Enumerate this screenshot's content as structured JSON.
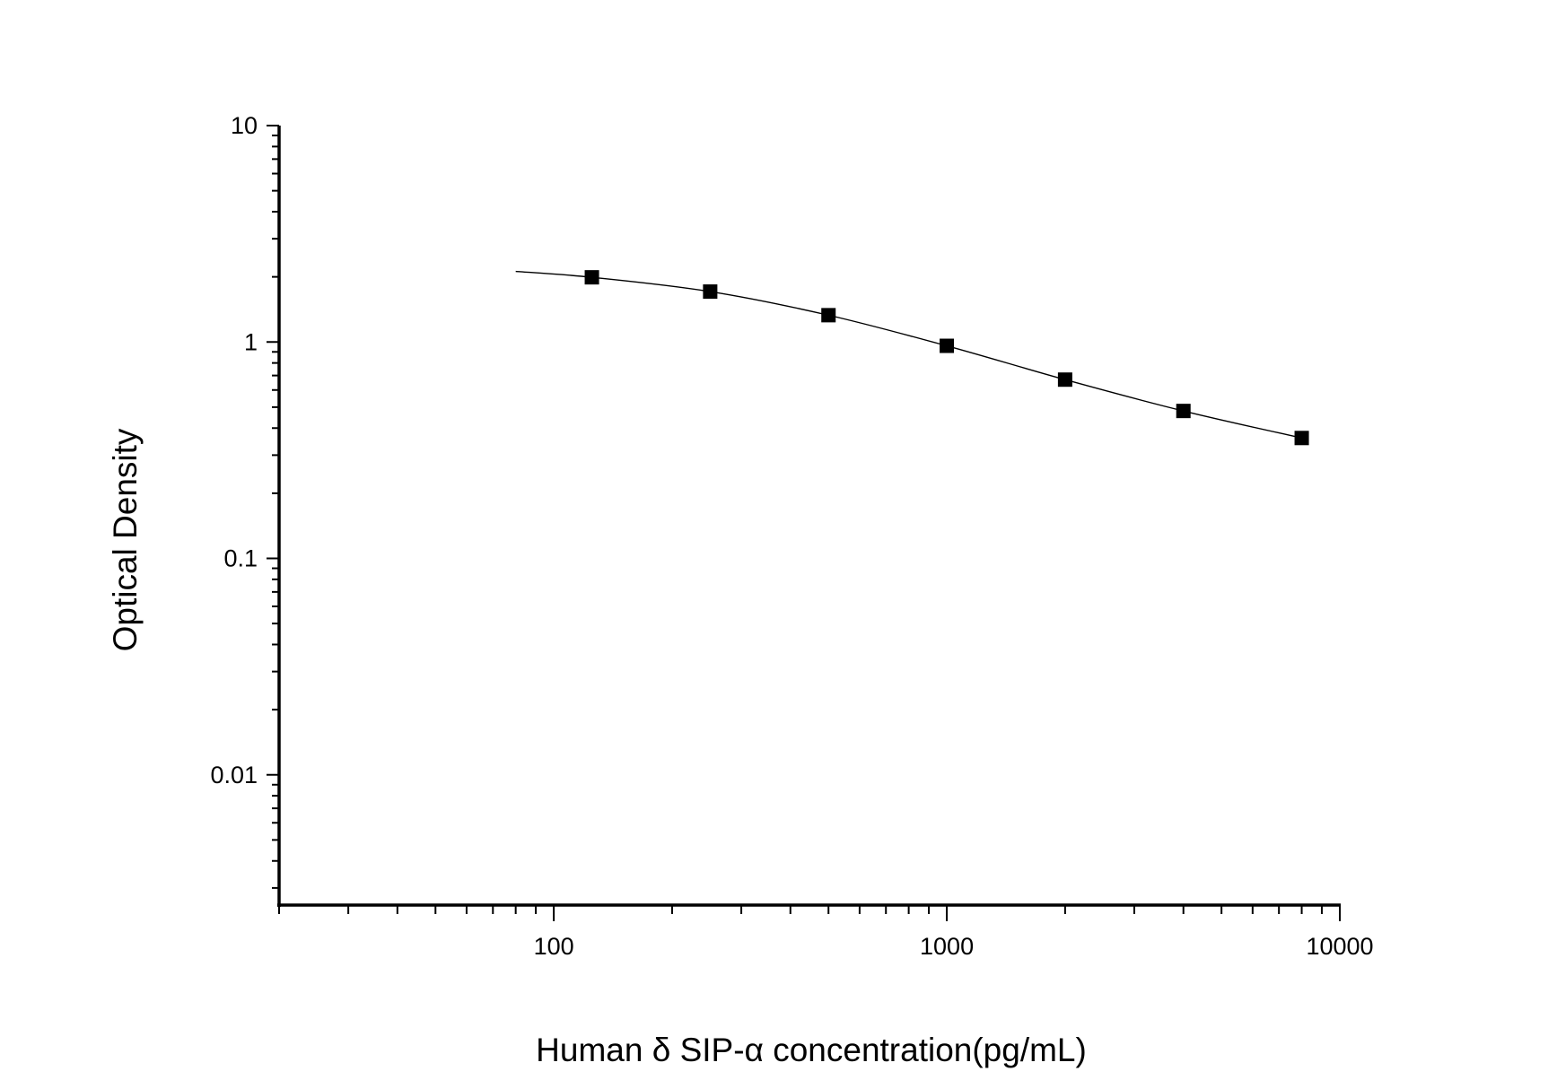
{
  "chart_data": {
    "type": "scatter",
    "title": "",
    "xlabel": "Human δ SIP-α  concentration(pg/mL)",
    "ylabel": "Optical Density",
    "x_scale": "log",
    "y_scale": "log",
    "xlim": [
      20,
      10000
    ],
    "ylim": [
      0.0025,
      10
    ],
    "x_ticks": [
      {
        "value": 100,
        "label": "100"
      },
      {
        "value": 1000,
        "label": "1000"
      },
      {
        "value": 10000,
        "label": "10000"
      }
    ],
    "y_ticks": [
      {
        "value": 10,
        "label": "10"
      },
      {
        "value": 1,
        "label": "1"
      },
      {
        "value": 0.1,
        "label": "0.1"
      },
      {
        "value": 0.01,
        "label": "0.01"
      }
    ],
    "grid": false,
    "legend": "none",
    "marker": "square",
    "color": "#000000",
    "series": [
      {
        "x": [
          125,
          250,
          500,
          1000,
          2000,
          4000,
          8000
        ],
        "y": [
          1.99,
          1.71,
          1.33,
          0.96,
          0.67,
          0.48,
          0.36
        ]
      }
    ],
    "fit_curve": {
      "x_start": 80,
      "y_start": 2.12
    }
  }
}
